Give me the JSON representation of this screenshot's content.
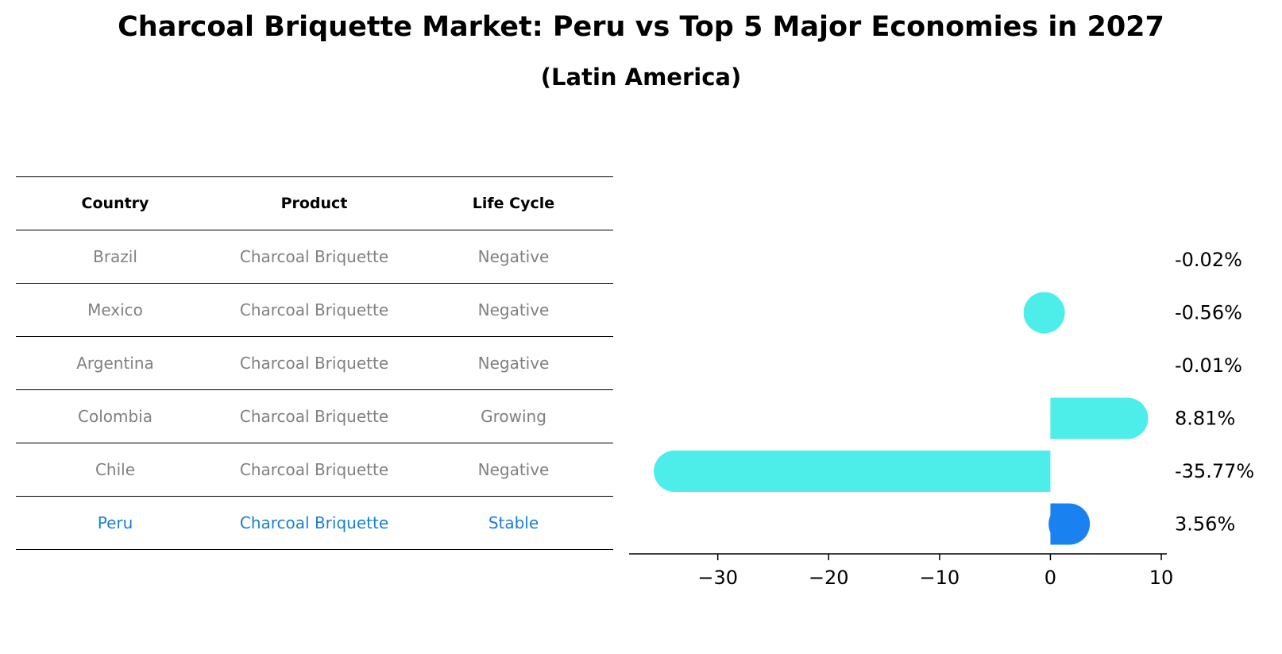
{
  "title": "Charcoal Briquette Market: Peru vs Top 5 Major Economies in 2027",
  "subtitle": "(Latin America)",
  "table": {
    "headers": [
      "Country",
      "Product",
      "Life Cycle"
    ],
    "rows": [
      {
        "country": "Brazil",
        "product": "Charcoal Briquette",
        "life_cycle": "Negative"
      },
      {
        "country": "Mexico",
        "product": "Charcoal Briquette",
        "life_cycle": "Negative"
      },
      {
        "country": "Argentina",
        "product": "Charcoal Briquette",
        "life_cycle": "Negative"
      },
      {
        "country": "Colombia",
        "product": "Charcoal Briquette",
        "life_cycle": "Growing"
      },
      {
        "country": "Chile",
        "product": "Charcoal Briquette",
        "life_cycle": "Negative"
      },
      {
        "country": "Peru",
        "product": "Charcoal Briquette",
        "life_cycle": "Stable"
      }
    ]
  },
  "chart_data": {
    "type": "bar",
    "orientation": "horizontal",
    "categories": [
      "Brazil",
      "Mexico",
      "Argentina",
      "Colombia",
      "Chile",
      "Peru"
    ],
    "values": [
      -0.02,
      -0.56,
      -0.01,
      8.81,
      -35.77,
      3.56
    ],
    "value_labels": [
      "-0.02%",
      "-0.56%",
      "-0.01%",
      "8.81%",
      "-35.77%",
      "3.56%"
    ],
    "xlim": [
      -38,
      10.5
    ],
    "xticks": [
      -30,
      -20,
      -10,
      0,
      10
    ],
    "xtick_labels": [
      "−30",
      "−20",
      "−10",
      "0",
      "10"
    ],
    "colors": {
      "default": "#4dedea",
      "highlight": "#1a82f0"
    },
    "highlight_category": "Peru"
  }
}
